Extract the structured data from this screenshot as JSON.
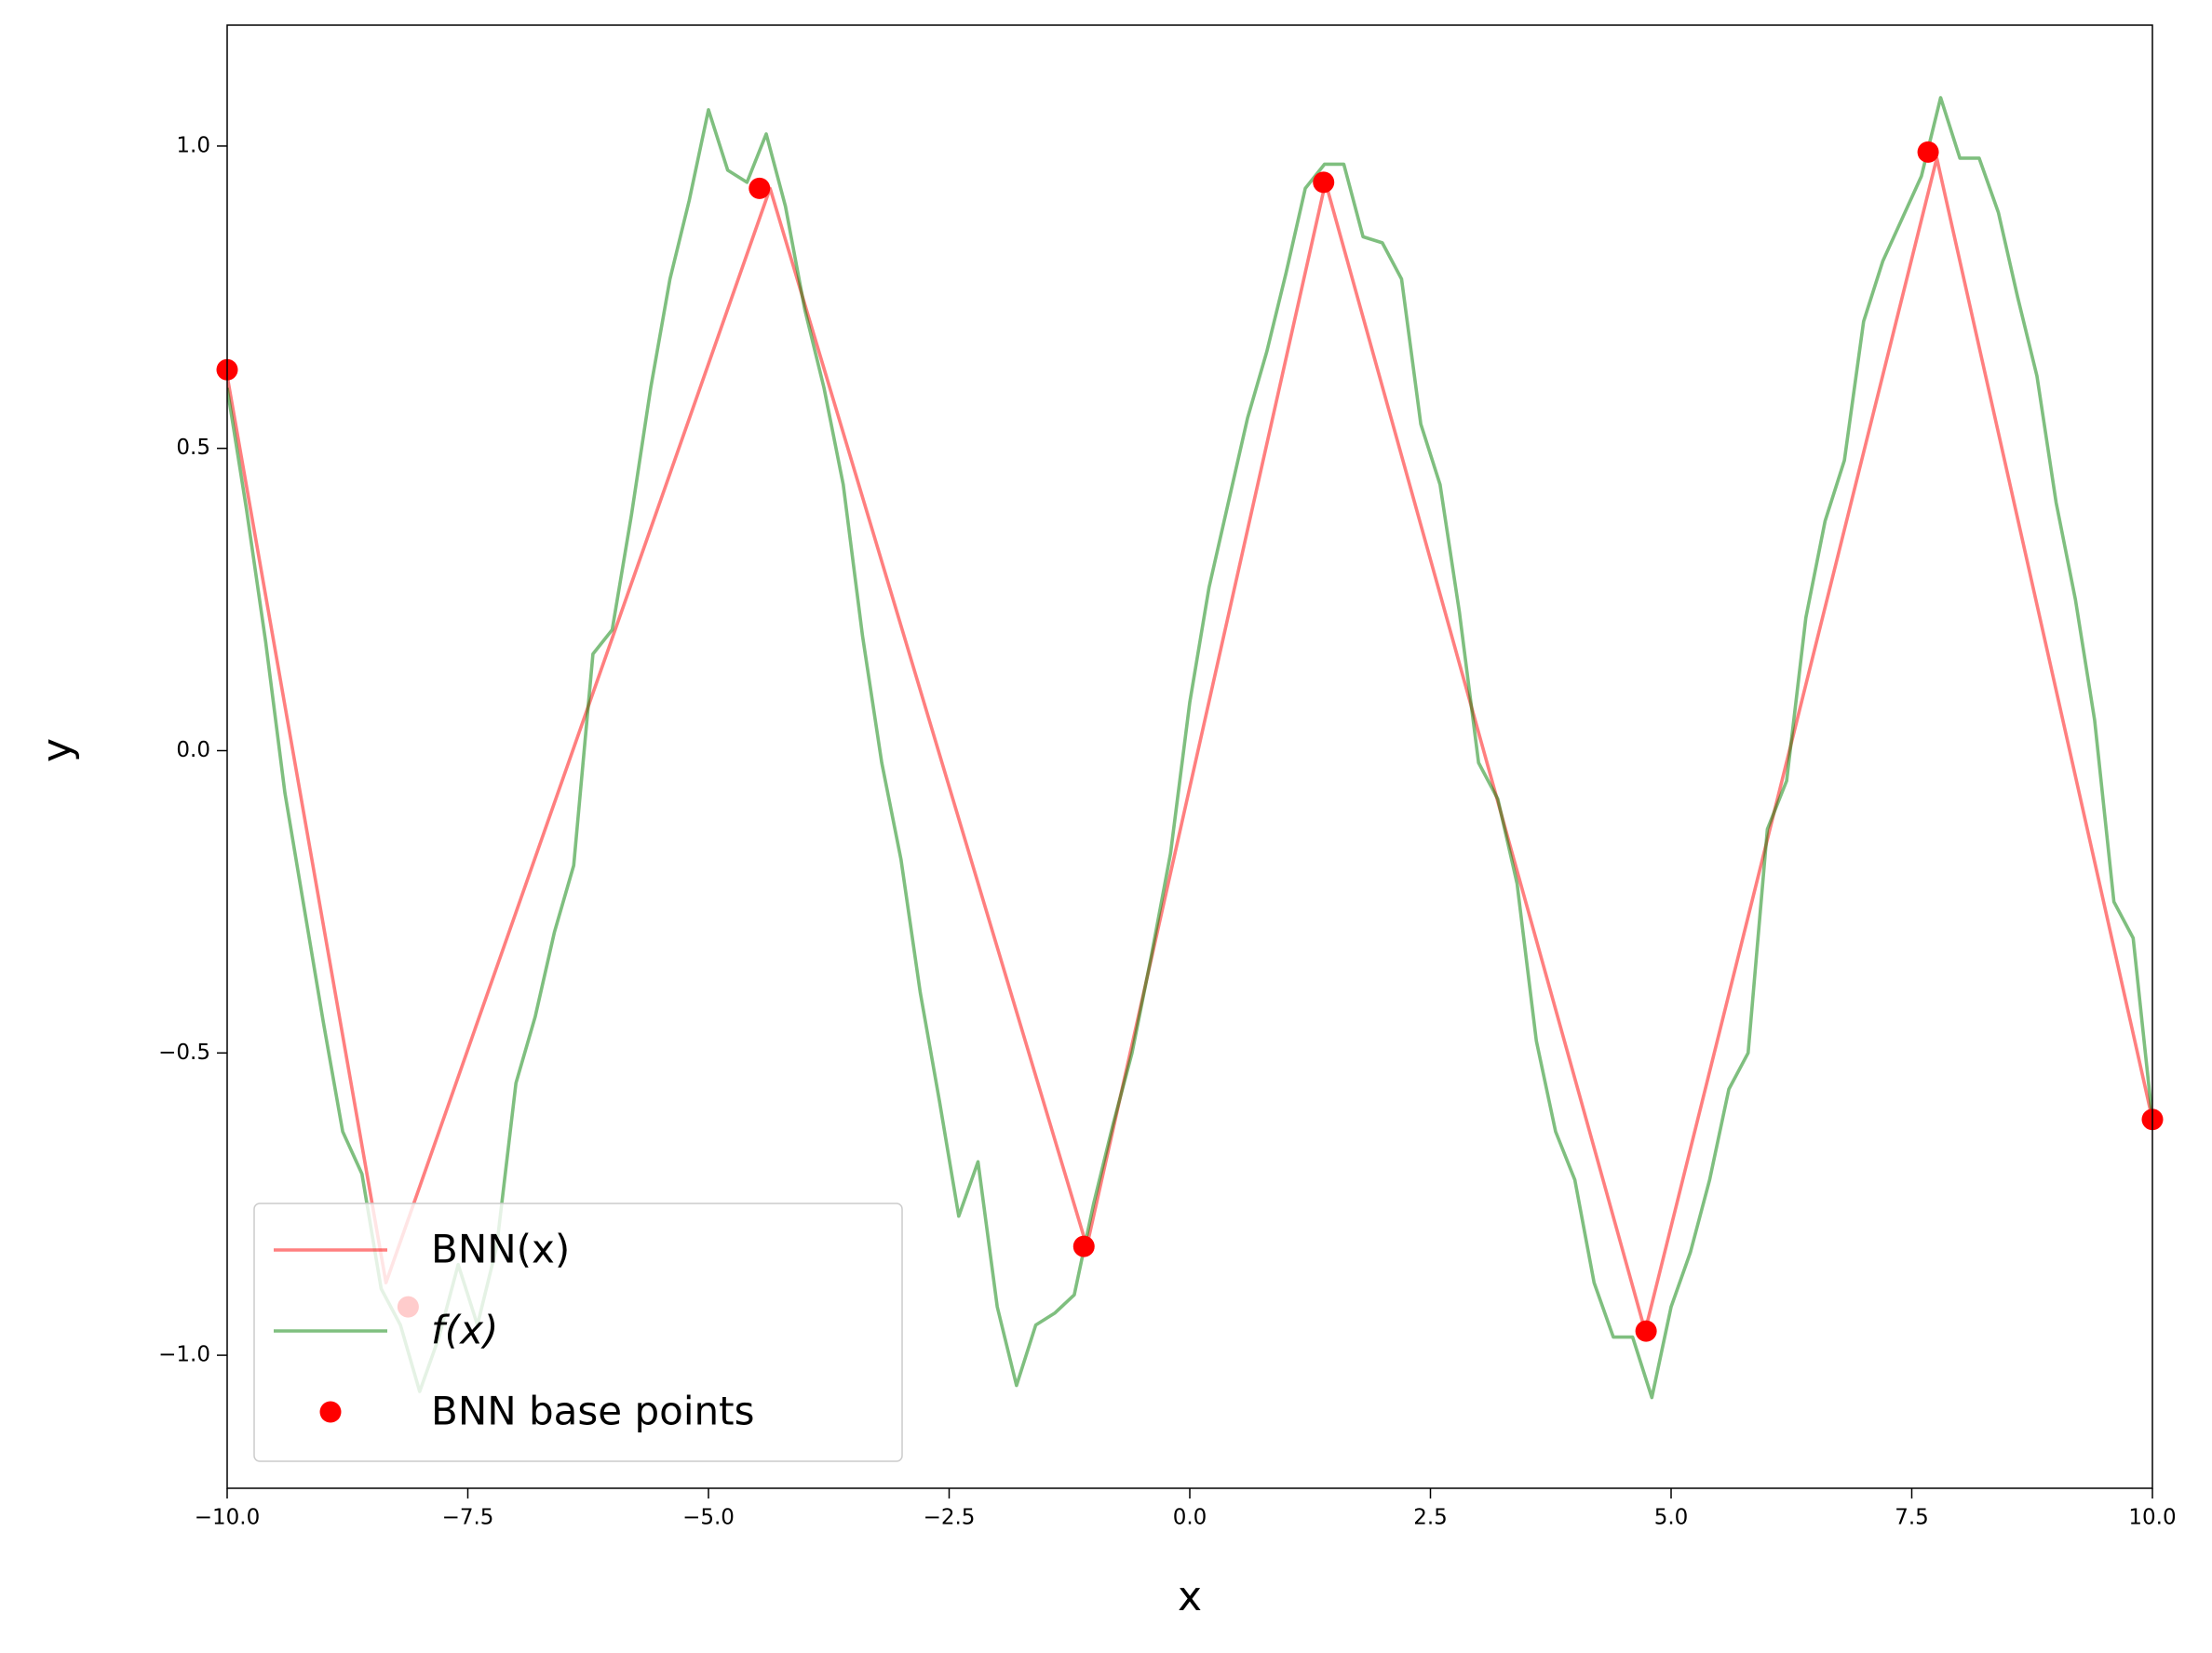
{
  "chart_data": {
    "type": "line",
    "xlabel": "x",
    "ylabel": "y",
    "xlim": [
      -10,
      10
    ],
    "ylim": [
      -1.22,
      1.2
    ],
    "xticks": [
      {
        "value": -10,
        "label": "−10.0"
      },
      {
        "value": -7.5,
        "label": "−7.5"
      },
      {
        "value": -5,
        "label": "−5.0"
      },
      {
        "value": -2.5,
        "label": "−2.5"
      },
      {
        "value": 0,
        "label": "0.0"
      },
      {
        "value": 2.5,
        "label": "2.5"
      },
      {
        "value": 5,
        "label": "5.0"
      },
      {
        "value": 7.5,
        "label": "7.5"
      },
      {
        "value": 10,
        "label": "10.0"
      }
    ],
    "yticks": [
      {
        "value": -1,
        "label": "−1.0"
      },
      {
        "value": -0.5,
        "label": "−0.5"
      },
      {
        "value": 0,
        "label": "0.0"
      },
      {
        "value": 0.5,
        "label": "0.5"
      },
      {
        "value": 1,
        "label": "1.0"
      }
    ],
    "legend": "lower left",
    "series": [
      {
        "name": "BNN(x)",
        "type": "line",
        "color": "#ff0000",
        "alpha": 0.5,
        "x": [
          -10,
          -8.35,
          -4.36,
          -1.07,
          1.41,
          4.73,
          7.76,
          10
        ],
        "values": [
          0.62,
          -0.88,
          0.93,
          -0.82,
          0.94,
          -0.96,
          0.98,
          -0.61
        ]
      },
      {
        "name": "f(x)",
        "type": "line",
        "color": "#008000",
        "alpha": 0.5,
        "x": [
          -10,
          -9.8,
          -9.6,
          -9.4,
          -9.2,
          -9,
          -8.8,
          -8.6,
          -8.4,
          -8.2,
          -8,
          -7.8,
          -7.6,
          -7.4,
          -7.2,
          -7,
          -6.8,
          -6.6,
          -6.4,
          -6.2,
          -6,
          -5.8,
          -5.6,
          -5.4,
          -5.2,
          -5,
          -4.8,
          -4.6,
          -4.4,
          -4.2,
          -4,
          -3.8,
          -3.6,
          -3.4,
          -3.2,
          -3,
          -2.8,
          -2.6,
          -2.4,
          -2.2,
          -2,
          -1.8,
          -1.6,
          -1.4,
          -1.2,
          -1,
          -0.8,
          -0.6,
          -0.4,
          -0.2,
          0,
          0.2,
          0.4,
          0.6,
          0.8,
          1,
          1.2,
          1.4,
          1.6,
          1.8,
          2,
          2.2,
          2.4,
          2.6,
          2.8,
          3,
          3.2,
          3.4,
          3.6,
          3.8,
          4,
          4.2,
          4.4,
          4.6,
          4.8,
          5,
          5.2,
          5.4,
          5.6,
          5.8,
          6,
          6.2,
          6.4,
          6.6,
          6.8,
          7,
          7.2,
          7.4,
          7.6,
          7.8,
          8,
          8.2,
          8.4,
          8.6,
          8.8,
          9,
          9.2,
          9.4,
          9.6,
          9.8,
          10
        ],
        "values": [
          0.6,
          0.4,
          0.18,
          -0.07,
          -0.26,
          -0.45,
          -0.63,
          -0.7,
          -0.89,
          -0.95,
          -1.06,
          -0.97,
          -0.85,
          -0.95,
          -0.82,
          -0.55,
          -0.44,
          -0.3,
          -0.19,
          0.16,
          0.2,
          0.39,
          0.6,
          0.78,
          0.91,
          1.06,
          0.96,
          0.94,
          1.02,
          0.9,
          0.73,
          0.6,
          0.44,
          0.19,
          -0.02,
          -0.18,
          -0.4,
          -0.58,
          -0.77,
          -0.68,
          -0.92,
          -1.05,
          -0.95,
          -0.93,
          -0.9,
          -0.75,
          -0.62,
          -0.5,
          -0.34,
          -0.17,
          0.08,
          0.27,
          0.41,
          0.55,
          0.66,
          0.79,
          0.93,
          0.97,
          0.97,
          0.85,
          0.84,
          0.78,
          0.54,
          0.44,
          0.23,
          -0.02,
          -0.08,
          -0.22,
          -0.48,
          -0.63,
          -0.71,
          -0.88,
          -0.97,
          -0.97,
          -1.07,
          -0.92,
          -0.83,
          -0.71,
          -0.56,
          -0.5,
          -0.13,
          -0.05,
          0.22,
          0.38,
          0.48,
          0.71,
          0.81,
          0.88,
          0.95,
          1.08,
          0.98,
          0.98,
          0.89,
          0.75,
          0.62,
          0.41,
          0.25,
          0.05,
          -0.25,
          -0.31,
          -0.61
        ]
      },
      {
        "name": "BNN base points",
        "type": "scatter",
        "color": "#ff0000",
        "x": [
          -10,
          -8.12,
          -4.47,
          -1.1,
          1.39,
          4.74,
          7.67,
          10
        ],
        "values": [
          0.63,
          -0.92,
          0.93,
          -0.82,
          0.94,
          -0.96,
          0.99,
          -0.61
        ]
      }
    ]
  }
}
